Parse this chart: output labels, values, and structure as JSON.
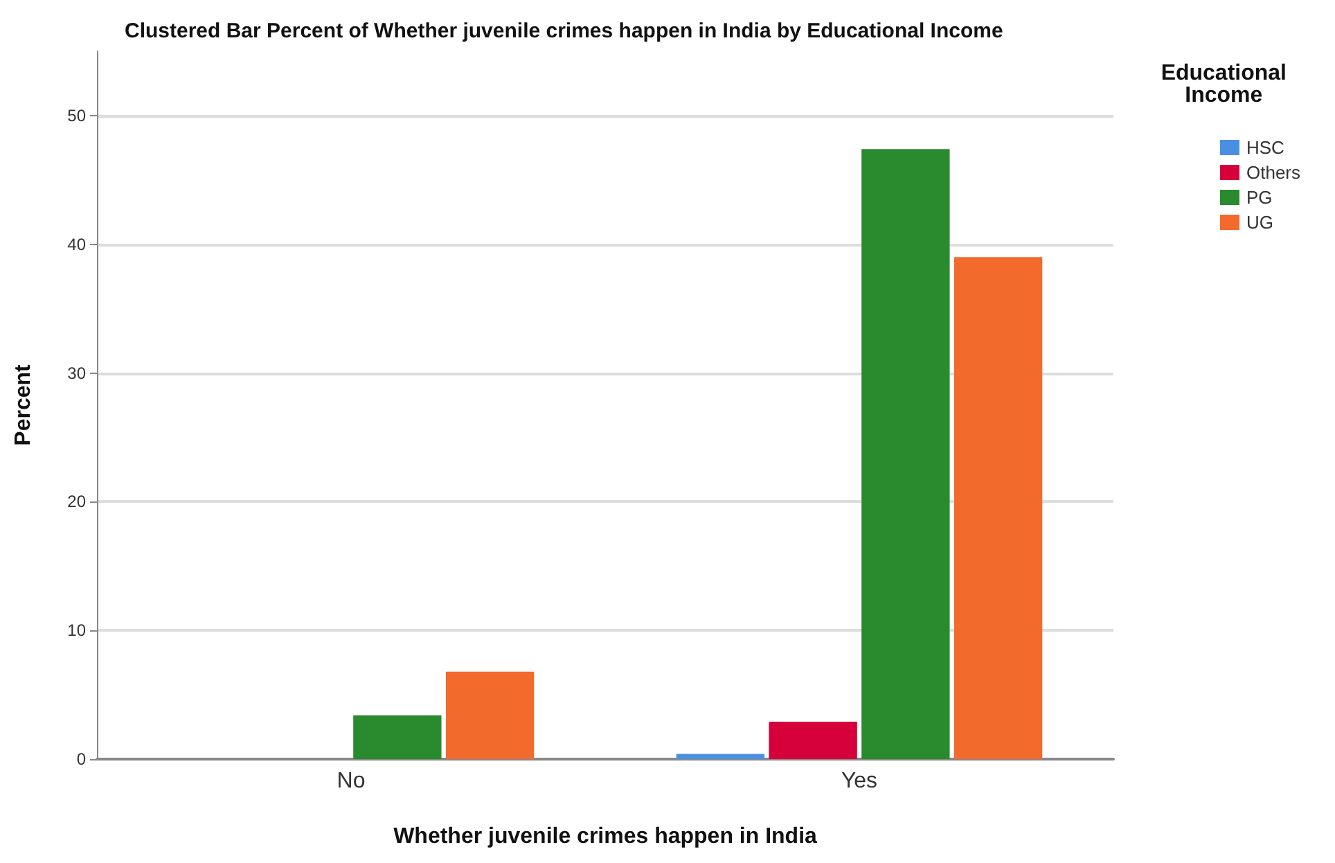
{
  "chart_data": {
    "type": "bar",
    "title": "Clustered Bar Percent of Whether juvenile crimes happen in India by Educational Income",
    "xlabel": "Whether juvenile crimes happen in India",
    "ylabel": "Percent",
    "legend_title": "Educational\nIncome",
    "categories": [
      "No",
      "Yes"
    ],
    "series": [
      {
        "name": "HSC",
        "color": "#4a90e2",
        "values": [
          0,
          0.4
        ]
      },
      {
        "name": "Others",
        "color": "#d6003a",
        "values": [
          0,
          2.9
        ]
      },
      {
        "name": "PG",
        "color": "#2a8a2e",
        "values": [
          3.4,
          47.4
        ]
      },
      {
        "name": "UG",
        "color": "#f26a2c",
        "values": [
          6.8,
          39.0
        ]
      }
    ],
    "ylim": [
      0,
      55
    ],
    "yticks": [
      0,
      10,
      20,
      30,
      40,
      50
    ],
    "grid": "y",
    "legend": "top right"
  }
}
